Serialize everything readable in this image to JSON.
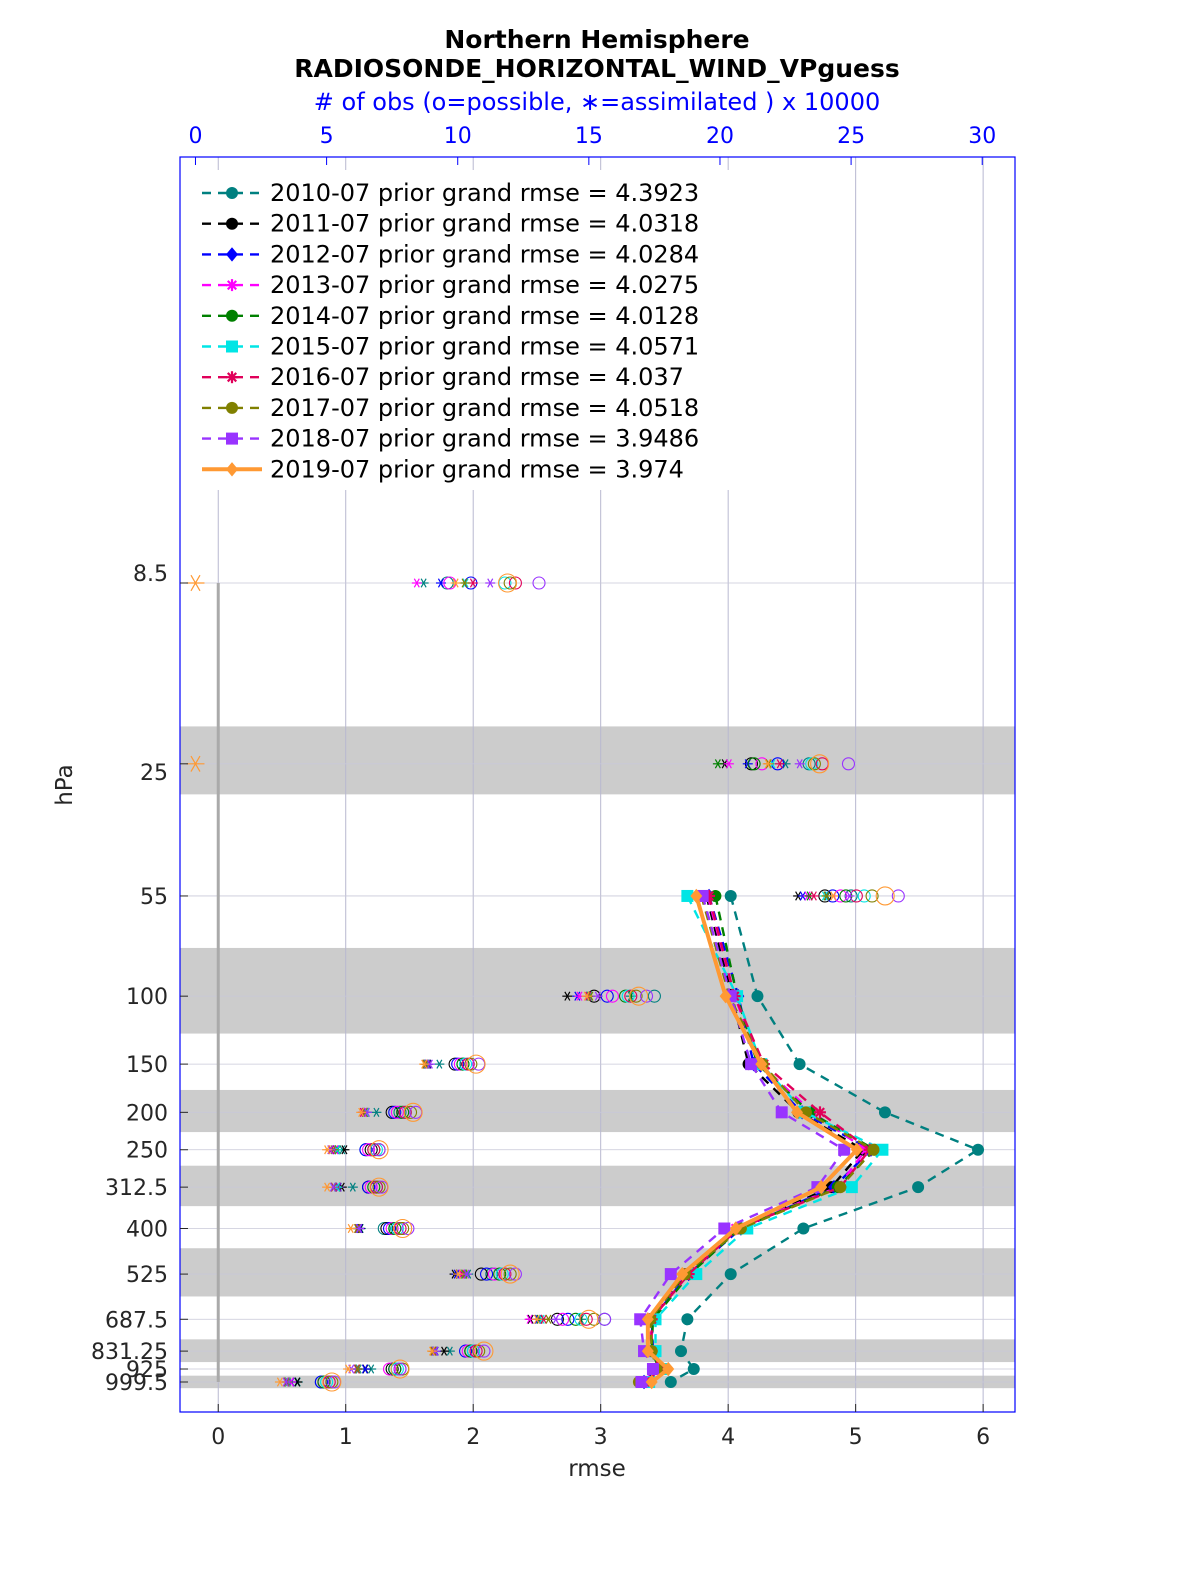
{
  "chart_data": {
    "type": "line",
    "title": "Northern Hemisphere",
    "subtitle": "RADIOSONDE_HORIZONTAL_WIND_VPguess",
    "top_axis_label": "# of obs (o=possible, ∗=assimilated ) x 10000",
    "xlabel": "rmse",
    "ylabel": "hPa",
    "xlim": [
      -0.3,
      6.25
    ],
    "x_ticks": [
      "0",
      "1",
      "2",
      "3",
      "4",
      "5",
      "6"
    ],
    "top_xlim": [
      -0.59,
      31.25
    ],
    "top_ticks": [
      "0",
      "5",
      "10",
      "15",
      "20",
      "25",
      "30"
    ],
    "y_scale": "log",
    "y_reversed": true,
    "grid": true,
    "legend_position": "top-left",
    "levels": [
      8.5,
      25,
      55,
      100,
      150,
      200,
      250,
      312.5,
      400,
      525,
      687.5,
      831.25,
      925,
      999.5
    ],
    "level_labels": [
      "8.5",
      "25",
      "55",
      "100",
      "150",
      "200",
      "250",
      "312.5",
      "400",
      "525",
      "687.5",
      "831.25",
      "925",
      "999.5"
    ],
    "shaded_layers": [
      [
        20,
        30
      ],
      [
        75,
        125
      ],
      [
        175,
        225
      ],
      [
        275,
        350
      ],
      [
        450,
        600
      ],
      [
        775,
        887.5
      ],
      [
        962.5,
        1037
      ]
    ],
    "series": [
      {
        "name": "2010-07 prior grand rmse = 4.3923",
        "color": "#008080",
        "marker": "circle",
        "dash": "dash",
        "values": [
          null,
          null,
          4.02,
          4.23,
          4.56,
          5.23,
          5.96,
          5.49,
          4.59,
          4.02,
          3.68,
          3.63,
          3.73,
          3.55
        ]
      },
      {
        "name": "2011-07 prior grand rmse = 4.0318",
        "color": "#000000",
        "marker": "octagon",
        "dash": "dash",
        "values": [
          null,
          null,
          3.83,
          4.03,
          4.16,
          4.55,
          5.06,
          4.81,
          4.08,
          3.67,
          3.39,
          3.4,
          3.45,
          3.33
        ]
      },
      {
        "name": "2012-07 prior grand rmse = 4.0284",
        "color": "#0000ff",
        "marker": "diamond",
        "dash": "dash",
        "values": [
          null,
          null,
          3.85,
          4.08,
          4.2,
          4.58,
          5.12,
          4.83,
          4.1,
          3.69,
          3.4,
          3.41,
          3.46,
          3.34
        ]
      },
      {
        "name": "2013-07 prior grand rmse = 4.0275",
        "color": "#ff00ff",
        "marker": "star",
        "dash": "dash",
        "values": [
          null,
          null,
          3.84,
          4.05,
          4.25,
          4.66,
          5.08,
          4.86,
          4.06,
          3.66,
          3.38,
          3.39,
          3.44,
          3.33
        ]
      },
      {
        "name": "2014-07 prior grand rmse = 4.0128",
        "color": "#008000",
        "marker": "octagon",
        "dash": "dash",
        "values": [
          null,
          null,
          3.9,
          4.07,
          4.23,
          4.64,
          5.15,
          4.86,
          4.09,
          3.7,
          3.41,
          3.4,
          3.46,
          3.36
        ]
      },
      {
        "name": "2015-07 prior grand rmse = 4.0571",
        "color": "#00e5e5",
        "marker": "square",
        "dash": "dash",
        "values": [
          null,
          null,
          3.68,
          4.07,
          4.26,
          4.6,
          5.21,
          4.97,
          4.15,
          3.75,
          3.43,
          3.43,
          3.48,
          3.38
        ]
      },
      {
        "name": "2016-07 prior grand rmse = 4.037",
        "color": "#e0005a",
        "marker": "star",
        "dash": "dash",
        "values": [
          null,
          null,
          3.85,
          4.05,
          4.28,
          4.72,
          5.11,
          4.88,
          4.08,
          3.69,
          3.4,
          3.4,
          3.47,
          3.35
        ]
      },
      {
        "name": "2017-07 prior grand rmse = 4.0518",
        "color": "#808000",
        "marker": "circle",
        "dash": "dash",
        "values": [
          null,
          null,
          3.79,
          4.01,
          4.27,
          4.61,
          5.14,
          4.88,
          4.1,
          3.66,
          3.39,
          3.4,
          3.44,
          3.3
        ]
      },
      {
        "name": "2018-07 prior grand rmse = 3.9486",
        "color": "#9933ff",
        "marker": "square",
        "dash": "dash",
        "values": [
          null,
          null,
          3.8,
          4.02,
          4.18,
          4.42,
          4.91,
          4.7,
          3.97,
          3.55,
          3.31,
          3.34,
          3.41,
          3.32
        ]
      },
      {
        "name": "2019-07 prior grand rmse = 3.974",
        "color": "#ff9933",
        "marker": "diamond",
        "dash": "solid",
        "values": [
          null,
          null,
          3.75,
          3.98,
          4.26,
          4.54,
          5.01,
          4.73,
          4.06,
          3.64,
          3.37,
          3.37,
          3.53,
          3.4
        ]
      }
    ],
    "obs_counts_x10000": {
      "levels": [
        8.5,
        25,
        55,
        100,
        150,
        200,
        250,
        312.5,
        400,
        525,
        687.5,
        831.25,
        925,
        999.5
      ],
      "possible": [
        [
          9.6,
          23.4,
          25.0,
          17.5,
          10.2,
          7.8,
          6.5,
          6.9,
          7.2,
          11.3,
          15.6,
          10.6,
          7.6,
          4.8
        ],
        [
          null,
          21.2,
          24.0,
          15.2,
          9.9,
          7.5,
          6.7,
          6.6,
          7.3,
          10.9,
          13.8,
          10.5,
          7.5,
          4.9
        ],
        [
          10.5,
          22.2,
          24.3,
          15.7,
          10.0,
          7.6,
          6.5,
          6.6,
          7.4,
          11.1,
          14.2,
          10.3,
          7.6,
          4.8
        ],
        [
          9.7,
          21.6,
          24.6,
          15.9,
          10.1,
          7.7,
          6.6,
          6.7,
          7.5,
          11.4,
          14.0,
          10.4,
          7.4,
          4.9
        ],
        [
          null,
          21.3,
          24.8,
          16.4,
          10.2,
          7.9,
          6.8,
          6.8,
          7.6,
          11.6,
          14.5,
          10.5,
          7.6,
          4.9
        ],
        [
          11.8,
          23.5,
          25.5,
          16.5,
          10.3,
          8.0,
          6.9,
          6.9,
          7.7,
          11.7,
          14.7,
          10.6,
          7.7,
          5.0
        ],
        [
          12.2,
          23.9,
          25.2,
          16.6,
          10.4,
          8.0,
          6.8,
          6.9,
          7.8,
          11.8,
          14.9,
          10.7,
          7.8,
          5.1
        ],
        [
          12.0,
          23.6,
          25.8,
          16.8,
          10.5,
          8.2,
          7.0,
          7.0,
          7.9,
          12.0,
          15.2,
          10.8,
          7.9,
          5.2
        ],
        [
          13.1,
          24.9,
          26.8,
          17.2,
          10.8,
          8.4,
          7.0,
          7.1,
          8.1,
          12.2,
          15.6,
          11.0,
          7.8,
          5.3
        ],
        [
          11.9,
          23.8,
          26.3,
          16.9,
          10.7,
          8.3,
          7.0,
          7.0,
          7.9,
          12.0,
          15.0,
          11.0,
          7.8,
          5.2
        ]
      ]
    }
  }
}
